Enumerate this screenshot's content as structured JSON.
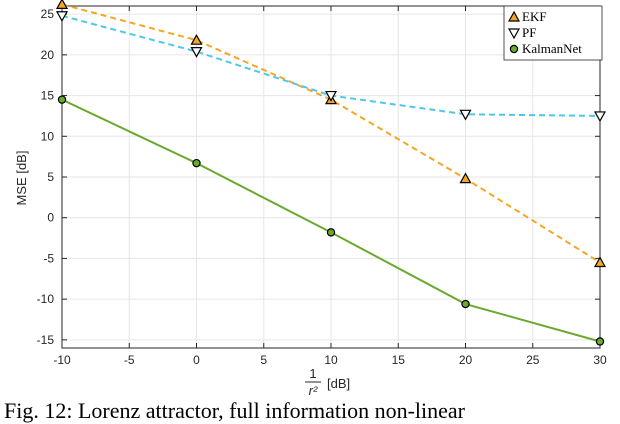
{
  "chart_data": {
    "type": "line",
    "title": "",
    "xlabel_fraction_numerator": "1",
    "xlabel_fraction_denominator": "r²",
    "xlabel_unit": "[dB]",
    "ylabel": "MSE [dB]",
    "x": [
      -10,
      0,
      10,
      20,
      30
    ],
    "xlim": [
      -10,
      30
    ],
    "ylim": [
      -16,
      26
    ],
    "xticks": [
      -10,
      -5,
      0,
      5,
      10,
      15,
      20,
      25,
      30
    ],
    "yticks": [
      -15,
      -10,
      -5,
      0,
      5,
      10,
      15,
      20,
      25
    ],
    "grid": true,
    "legend_position": "top-right",
    "series": [
      {
        "name": "EKF",
        "values": [
          26.2,
          21.8,
          14.5,
          4.8,
          -5.5
        ],
        "color": "#f5a623",
        "dash": "dashed",
        "marker": "triangle-up"
      },
      {
        "name": "PF",
        "values": [
          24.8,
          20.4,
          15.0,
          12.7,
          12.5
        ],
        "color": "#4dc8ea",
        "dash": "dashed",
        "marker": "triangle-down"
      },
      {
        "name": "KalmanNet",
        "values": [
          14.5,
          6.7,
          -1.8,
          -10.6,
          -15.2
        ],
        "color": "#6aa82e",
        "dash": "solid",
        "marker": "circle"
      }
    ]
  },
  "caption": "Fig. 12: Lorenz attractor, full information non-linear"
}
